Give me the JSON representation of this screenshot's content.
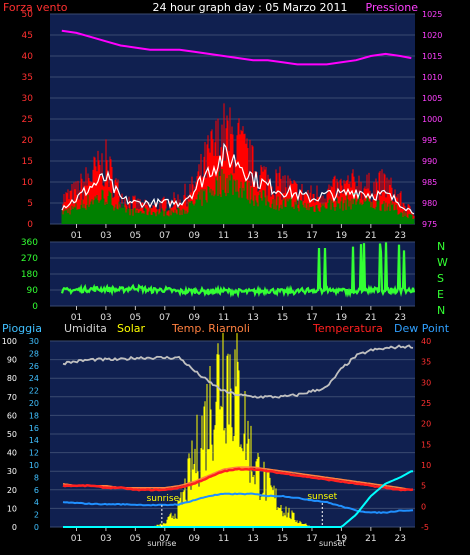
{
  "header": {
    "left_label": "Forza vento",
    "title": "24 hour graph day : 05 Marzo 2011",
    "right_label": "Pressione"
  },
  "colors": {
    "wind_gust": "#ff0000",
    "wind_mean": "#008000",
    "wind_avg_line": "#ffffff",
    "pressure": "#ff00ff",
    "direction": "#33ff33",
    "humidity": "#c0c0c0",
    "solar": "#ffff00",
    "temperature": "#ff2020",
    "riarnoli": "#ff8040",
    "dewpoint": "#2090ff",
    "rain": "#00ffff",
    "panel_bg": "#102050",
    "grid": "#3a4a70"
  },
  "x_ticks": [
    "01",
    "03",
    "05",
    "07",
    "09",
    "11",
    "13",
    "15",
    "17",
    "19",
    "21",
    "23"
  ],
  "bottom_x_extra": {
    "sunrise_tick": "sunrise",
    "sunset_tick": "sunset"
  },
  "chart_data": [
    {
      "type": "area",
      "title": "24 hour graph day : 05 Marzo 2011",
      "ylabel_left": "Forza vento",
      "ylabel_right": "Pressione",
      "x_hours": [
        0,
        1,
        2,
        3,
        4,
        5,
        6,
        7,
        8,
        9,
        10,
        11,
        12,
        13,
        14,
        15,
        16,
        17,
        18,
        19,
        20,
        21,
        22,
        23,
        23.75
      ],
      "ylim_left": [
        0,
        50
      ],
      "ylim_right": [
        975,
        1025
      ],
      "yticks_left": [
        0,
        5,
        10,
        15,
        20,
        25,
        30,
        35,
        40,
        45,
        50
      ],
      "yticks_right": [
        975,
        980,
        985,
        990,
        995,
        1000,
        1005,
        1010,
        1015,
        1020,
        1025
      ],
      "series": [
        {
          "name": "Forza vento",
          "axis": "left",
          "gust": [
            6,
            8,
            12,
            15,
            7,
            5,
            4,
            5,
            6,
            9,
            17,
            22,
            20,
            14,
            11,
            10,
            8,
            7,
            8,
            9,
            10,
            9,
            10,
            6,
            3
          ],
          "mean": [
            3,
            4,
            6,
            7,
            4,
            3,
            3,
            3,
            3,
            5,
            8,
            11,
            10,
            7,
            6,
            5,
            5,
            4,
            5,
            5,
            6,
            5,
            5,
            3,
            2
          ],
          "avg": [
            4,
            6,
            9,
            11,
            6,
            5,
            5,
            5,
            5,
            8,
            13,
            16,
            15,
            11,
            9,
            8,
            7,
            6,
            7,
            7,
            8,
            7,
            7,
            5,
            3
          ]
        },
        {
          "name": "Pressione",
          "axis": "right",
          "values": [
            1021,
            1020.5,
            1019.5,
            1018.5,
            1017.5,
            1017,
            1016.5,
            1016.5,
            1016.5,
            1016,
            1015.5,
            1015,
            1014.5,
            1014,
            1014,
            1013.5,
            1013,
            1013,
            1013,
            1013.5,
            1014,
            1015,
            1015.5,
            1015,
            1014.5
          ]
        }
      ]
    },
    {
      "type": "line",
      "yticks": [
        0,
        90,
        180,
        270,
        360
      ],
      "ylim": [
        0,
        360
      ],
      "direction_labels": [
        "N",
        "W",
        "S",
        "E",
        "N"
      ],
      "x_hours": [
        0,
        1,
        2,
        3,
        4,
        5,
        6,
        7,
        8,
        9,
        10,
        11,
        12,
        13,
        14,
        15,
        16,
        17,
        18,
        19,
        20,
        21,
        22,
        23,
        23.75
      ],
      "values": [
        85,
        90,
        95,
        95,
        90,
        105,
        88,
        92,
        80,
        85,
        82,
        85,
        80,
        80,
        88,
        80,
        82,
        90,
        88,
        85,
        82,
        90,
        85,
        90,
        88
      ]
    },
    {
      "type": "area",
      "legend": [
        "Pioggia",
        "Umidita",
        "Solar",
        "Temp. Riarnoli",
        "Temperatura",
        "Dew Point"
      ],
      "ylim_left": [
        0,
        100
      ],
      "ylim_mid": [
        0,
        30
      ],
      "ylim_right": [
        -5,
        40
      ],
      "yticks_left": [
        0,
        10,
        20,
        30,
        40,
        50,
        60,
        70,
        80,
        90,
        100
      ],
      "yticks_mid": [
        0,
        2,
        4,
        6,
        8,
        10,
        12,
        14,
        16,
        18,
        20,
        22,
        24,
        26,
        28,
        30
      ],
      "yticks_right": [
        -5,
        0,
        5,
        10,
        15,
        20,
        25,
        30,
        35,
        40
      ],
      "sunrise_hour": 6.8,
      "sunset_hour": 17.7,
      "x_hours": [
        0,
        1,
        2,
        3,
        4,
        5,
        6,
        7,
        8,
        9,
        10,
        11,
        12,
        13,
        14,
        15,
        16,
        17,
        18,
        19,
        20,
        21,
        22,
        23,
        23.75
      ],
      "series": [
        {
          "name": "Umidita",
          "values": [
            88,
            89,
            90,
            90,
            90,
            91,
            91,
            91,
            91,
            84,
            78,
            73,
            71,
            70,
            70,
            70,
            71,
            73,
            75,
            85,
            92,
            95,
            96,
            97,
            97
          ]
        },
        {
          "name": "Solar",
          "values": [
            0,
            0,
            0,
            0,
            0,
            0,
            0,
            0.5,
            3,
            10,
            18,
            26,
            20,
            10,
            6,
            3,
            1,
            0,
            0,
            0,
            0,
            0,
            0,
            0,
            0
          ]
        },
        {
          "name": "Temp. Riarnoli",
          "values": [
            5.5,
            5,
            5,
            5,
            4.5,
            4.5,
            4.5,
            4.5,
            5,
            6,
            7.5,
            9,
            9.5,
            9.5,
            9,
            8.5,
            8,
            7.5,
            7,
            6.5,
            6,
            5.5,
            5,
            4.5,
            4
          ]
        },
        {
          "name": "Temperatura",
          "values": [
            5,
            5,
            5,
            4.5,
            4.5,
            4,
            4,
            4,
            4.5,
            5.5,
            7,
            8.5,
            9,
            9,
            8.5,
            8,
            7.5,
            7,
            6.5,
            6,
            5.5,
            5,
            4.5,
            4,
            4
          ]
        },
        {
          "name": "Dew Point",
          "values": [
            1,
            0.8,
            0.6,
            0.5,
            0.5,
            0.4,
            0.3,
            0.3,
            0.5,
            1.5,
            2.5,
            3,
            3,
            3,
            2.5,
            2.5,
            2,
            1.5,
            1,
            0,
            -1,
            -1.5,
            -1.5,
            -1,
            -1
          ]
        },
        {
          "name": "Pioggia",
          "values": [
            0,
            0,
            0,
            0,
            0,
            0,
            0,
            0,
            0,
            0,
            0,
            0,
            0,
            0,
            0,
            0,
            0,
            0,
            0,
            0,
            2,
            5,
            7,
            8,
            9
          ]
        }
      ]
    }
  ]
}
